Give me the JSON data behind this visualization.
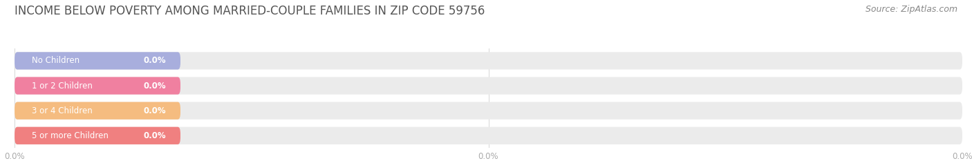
{
  "title": "INCOME BELOW POVERTY AMONG MARRIED-COUPLE FAMILIES IN ZIP CODE 59756",
  "source": "Source: ZipAtlas.com",
  "categories": [
    "No Children",
    "1 or 2 Children",
    "3 or 4 Children",
    "5 or more Children"
  ],
  "values": [
    0.0,
    0.0,
    0.0,
    0.0
  ],
  "bar_colors": [
    "#a8aedd",
    "#f080a0",
    "#f5bc80",
    "#f08080"
  ],
  "bar_bg_color": "#ebebeb",
  "background_color": "#ffffff",
  "xlim": [
    0,
    100
  ],
  "title_fontsize": 12,
  "source_fontsize": 9,
  "label_fontsize": 8.5,
  "value_fontsize": 8.5,
  "tick_fontsize": 8.5,
  "title_color": "#555555",
  "source_color": "#888888",
  "tick_color": "#aaaaaa",
  "value_text_color": "#ffffff",
  "xticks": [
    0,
    50,
    100
  ],
  "xticklabels": [
    "0.0%",
    "0.0%",
    "0.0%"
  ]
}
